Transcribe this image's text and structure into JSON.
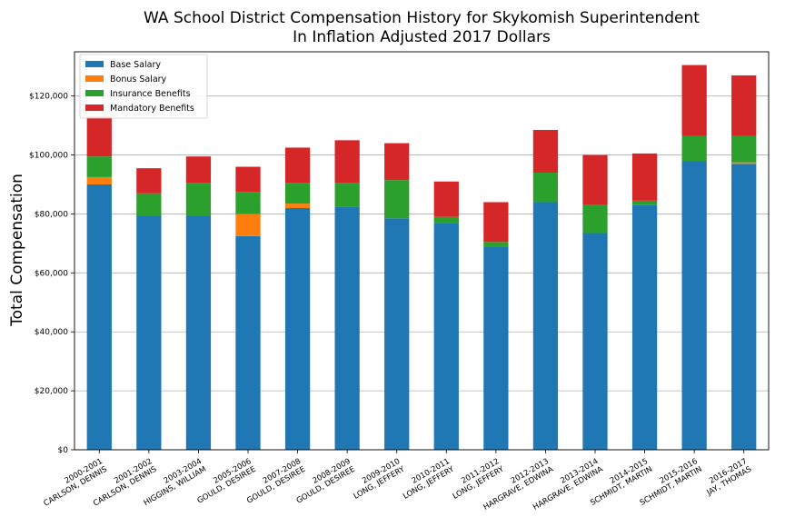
{
  "chart_data": {
    "type": "bar",
    "stacked": true,
    "title": "WA School District Compensation History for Skykomish Superintendent",
    "subtitle": "In Inflation Adjusted 2017 Dollars",
    "xlabel": "",
    "ylabel": "Total Compensation",
    "ylim": [
      0,
      135000
    ],
    "yticks": [
      0,
      20000,
      40000,
      60000,
      80000,
      100000,
      120000
    ],
    "ytick_labels": [
      "$0",
      "$20,000",
      "$40,000",
      "$60,000",
      "$80,000",
      "$100,000",
      "$120,000"
    ],
    "grid": "horizontal",
    "legend_position": "top-left",
    "categories": [
      {
        "year": "2000-2001",
        "name": "CARLSON, DENNIS"
      },
      {
        "year": "2001-2002",
        "name": "CARLSON, DENNIS"
      },
      {
        "year": "2003-2004",
        "name": "HIGGINS, WILLIAM"
      },
      {
        "year": "2005-2006",
        "name": "GOULD, DESIREE"
      },
      {
        "year": "2007-2008",
        "name": "GOULD, DESIREE"
      },
      {
        "year": "2008-2009",
        "name": "GOULD, DESIREE"
      },
      {
        "year": "2009-2010",
        "name": "LONG, JEFFERY"
      },
      {
        "year": "2010-2011",
        "name": "LONG, JEFFERY"
      },
      {
        "year": "2011-2012",
        "name": "LONG, JEFFERY"
      },
      {
        "year": "2012-2013",
        "name": "HARGRAVE, EDWINA"
      },
      {
        "year": "2013-2014",
        "name": "HARGRAVE, EDWINA"
      },
      {
        "year": "2014-2015",
        "name": "SCHMIDT, MARTIN"
      },
      {
        "year": "2015-2016",
        "name": "SCHMIDT, MARTIN"
      },
      {
        "year": "2016-2017",
        "name": "JAY, THOMAS"
      }
    ],
    "series": [
      {
        "name": "Base Salary",
        "color": "#1f77b4",
        "values": [
          90000,
          79500,
          79500,
          72500,
          82000,
          82500,
          78500,
          77000,
          69000,
          84000,
          73500,
          83000,
          98000,
          97000
        ]
      },
      {
        "name": "Bonus Salary",
        "color": "#ff7f0e",
        "values": [
          2500,
          0,
          0,
          7500,
          1500,
          0,
          0,
          0,
          0,
          0,
          0,
          0,
          0,
          500
        ]
      },
      {
        "name": "Insurance Benefits",
        "color": "#2ca02c",
        "values": [
          7000,
          7500,
          11000,
          7500,
          7000,
          8000,
          13000,
          2000,
          1500,
          10000,
          9500,
          1500,
          8500,
          9000
        ]
      },
      {
        "name": "Mandatory Benefits",
        "color": "#d62728",
        "values": [
          13500,
          8500,
          9000,
          8500,
          12000,
          14500,
          12500,
          12000,
          13500,
          14500,
          17000,
          16000,
          24000,
          20500
        ]
      }
    ]
  }
}
